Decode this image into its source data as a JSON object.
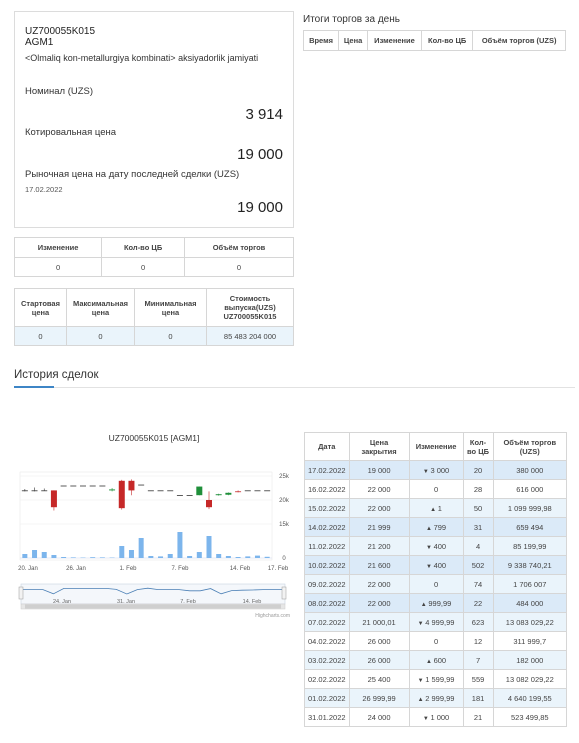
{
  "security": {
    "code": "UZ700055K015",
    "ticker": "AGM1",
    "company": "<Olmaliq kon-metallurgiya kombinati> aksiyadorlik jamiyati",
    "nominal_label": "Номинал (UZS)",
    "nominal_value": "3 914",
    "quote_label": "Котировальная цена",
    "quote_value": "19 000",
    "market_label": "Рыночная цена на дату последней сделки (UZS)",
    "market_date": "17.02.2022",
    "market_value": "19 000"
  },
  "stats1": {
    "headers": [
      "Изменение",
      "Кол-во ЦБ",
      "Объём торгов"
    ],
    "values": [
      "0",
      "0",
      "0"
    ]
  },
  "stats2": {
    "headers": [
      "Стартовая цена",
      "Максимальная цена",
      "Минимальная цена",
      "Стоимость выпуска(UZS) UZ700055K015"
    ],
    "values": [
      "0",
      "0",
      "0",
      "85 483 204 000"
    ]
  },
  "daily": {
    "title": "Итоги торгов за день",
    "headers": [
      "Время",
      "Цена",
      "Изменение",
      "Кол-во ЦБ",
      "Объём торгов (UZS)"
    ]
  },
  "history": {
    "title": "История сделок",
    "headers": [
      "Дата",
      "Цена закрытия",
      "Изменение",
      "Кол-во ЦБ",
      "Объём торгов (UZS)"
    ],
    "rows": [
      {
        "date": "17.02.2022",
        "close": "19 000",
        "dir": "down",
        "change": "3 000",
        "qty": "20",
        "volume": "380 000"
      },
      {
        "date": "16.02.2022",
        "close": "22 000",
        "dir": "flat",
        "change": "0",
        "qty": "28",
        "volume": "616 000"
      },
      {
        "date": "15.02.2022",
        "close": "22 000",
        "dir": "up",
        "change": "1",
        "qty": "50",
        "volume": "1 099 999,98"
      },
      {
        "date": "14.02.2022",
        "close": "21 999",
        "dir": "up",
        "change": "799",
        "qty": "31",
        "volume": "659 494"
      },
      {
        "date": "11.02.2022",
        "close": "21 200",
        "dir": "down",
        "change": "400",
        "qty": "4",
        "volume": "85 199,99"
      },
      {
        "date": "10.02.2022",
        "close": "21 600",
        "dir": "down",
        "change": "400",
        "qty": "502",
        "volume": "9 338 740,21"
      },
      {
        "date": "09.02.2022",
        "close": "22 000",
        "dir": "flat",
        "change": "0",
        "qty": "74",
        "volume": "1 706 007"
      },
      {
        "date": "08.02.2022",
        "close": "22 000",
        "dir": "up",
        "change": "999,99",
        "qty": "22",
        "volume": "484 000"
      },
      {
        "date": "07.02.2022",
        "close": "21 000,01",
        "dir": "down",
        "change": "4 999,99",
        "qty": "623",
        "volume": "13 083 029,22"
      },
      {
        "date": "04.02.2022",
        "close": "26 000",
        "dir": "flat",
        "change": "0",
        "qty": "12",
        "volume": "311 999,7"
      },
      {
        "date": "03.02.2022",
        "close": "26 000",
        "dir": "up",
        "change": "600",
        "qty": "7",
        "volume": "182 000"
      },
      {
        "date": "02.02.2022",
        "close": "25 400",
        "dir": "down",
        "change": "1 599,99",
        "qty": "559",
        "volume": "13 082 029,22"
      },
      {
        "date": "01.02.2022",
        "close": "26 999,99",
        "dir": "up",
        "change": "2 999,99",
        "qty": "181",
        "volume": "4 640 199,55"
      },
      {
        "date": "31.01.2022",
        "close": "24 000",
        "dir": "down",
        "change": "1 000",
        "qty": "21",
        "volume": "523 499,85"
      }
    ]
  },
  "chart_data": {
    "type": "candlestick",
    "title": "UZ700055K015 [AGM1]",
    "x_ticks": [
      "20. Jan",
      "26. Jan",
      "1. Feb",
      "7. Feb",
      "14. Feb",
      "17. Feb"
    ],
    "y_ticks_price": [
      "25k",
      "20k",
      "15k"
    ],
    "y_ticks_volume": [
      "0"
    ],
    "navigator_ticks": [
      "24. Jan",
      "31. Jan",
      "7. Feb",
      "14. Feb"
    ],
    "credit": "Highcharts.com",
    "candles": [
      {
        "o": 22000,
        "h": 22300,
        "l": 21800,
        "c": 22000
      },
      {
        "o": 22000,
        "h": 22600,
        "l": 21800,
        "c": 22000
      },
      {
        "o": 22000,
        "h": 22400,
        "l": 21900,
        "c": 22000
      },
      {
        "o": 22000,
        "h": 22000,
        "l": 17800,
        "c": 18500
      },
      {
        "o": 23000,
        "h": 23000,
        "l": 23000,
        "c": 23000
      },
      {
        "o": 23000,
        "h": 23000,
        "l": 23000,
        "c": 23000
      },
      {
        "o": 23000,
        "h": 23000,
        "l": 23000,
        "c": 23000
      },
      {
        "o": 23000,
        "h": 23000,
        "l": 23000,
        "c": 23000
      },
      {
        "o": 23000,
        "h": 23000,
        "l": 23000,
        "c": 23000
      },
      {
        "o": 22000,
        "h": 22500,
        "l": 21800,
        "c": 22200
      },
      {
        "o": 24000,
        "h": 24200,
        "l": 18000,
        "c": 18300
      },
      {
        "o": 24000,
        "h": 24300,
        "l": 21000,
        "c": 22000
      },
      {
        "o": 23200,
        "h": 23200,
        "l": 23200,
        "c": 23200
      },
      {
        "o": 22000,
        "h": 22000,
        "l": 22000,
        "c": 22000
      },
      {
        "o": 22000,
        "h": 22000,
        "l": 22000,
        "c": 22000
      },
      {
        "o": 22000,
        "h": 22000,
        "l": 22000,
        "c": 22000
      },
      {
        "o": 21000,
        "h": 21000,
        "l": 21000,
        "c": 21000
      },
      {
        "o": 21000,
        "h": 21000,
        "l": 21000,
        "c": 21000
      },
      {
        "o": 21000,
        "h": 22800,
        "l": 21000,
        "c": 22800
      },
      {
        "o": 20000,
        "h": 21800,
        "l": 18100,
        "c": 18500
      },
      {
        "o": 21000,
        "h": 21300,
        "l": 20900,
        "c": 21200
      },
      {
        "o": 21100,
        "h": 21600,
        "l": 21000,
        "c": 21500
      },
      {
        "o": 21800,
        "h": 22000,
        "l": 21600,
        "c": 21700
      },
      {
        "o": 22000,
        "h": 22000,
        "l": 22000,
        "c": 22000
      },
      {
        "o": 22000,
        "h": 22000,
        "l": 22000,
        "c": 22000
      },
      {
        "o": 22000,
        "h": 22000,
        "l": 22000,
        "c": 22000
      }
    ],
    "volumes": [
      20,
      40,
      30,
      15,
      5,
      3,
      2,
      4,
      3,
      2,
      60,
      40,
      100,
      10,
      8,
      20,
      130,
      10,
      30,
      110,
      20,
      10,
      5,
      8,
      12,
      6
    ],
    "price_range": [
      15000,
      25000
    ],
    "colors": {
      "up": "#1f8f3a",
      "down": "#c62828",
      "volume": "#7cb5ec",
      "nav": "#4a7fb5"
    }
  }
}
